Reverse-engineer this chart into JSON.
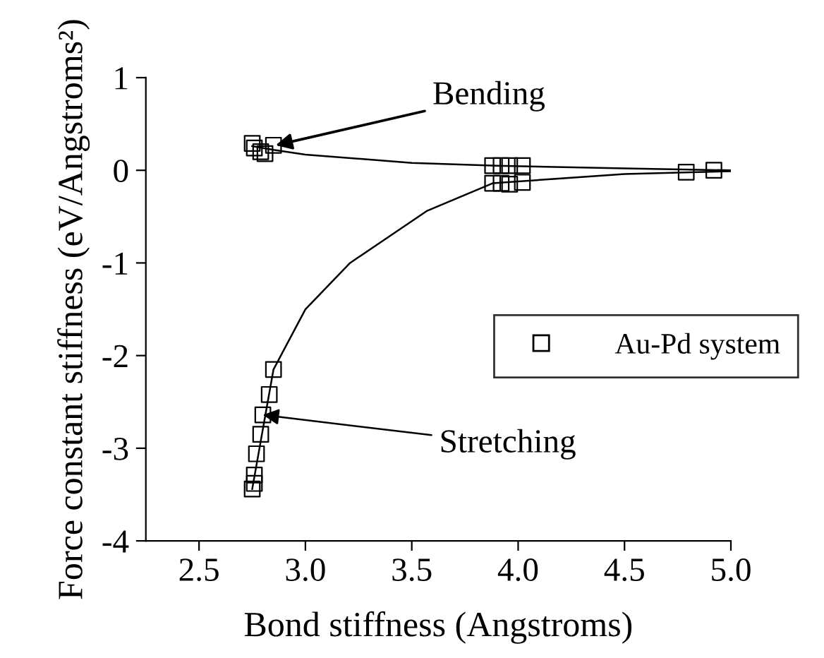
{
  "chart_data": {
    "type": "scatter",
    "xlabel": "Bond stiffness (Angstroms)",
    "ylabel": "Force constant stiffness (eV/Angstroms²)",
    "xlim": [
      2.25,
      5.0
    ],
    "ylim": [
      -4,
      1
    ],
    "xticks": [
      2.5,
      {
        "value": 3.0,
        "label": "3.0"
      },
      3.5,
      {
        "value": 4.0,
        "label": "4.0"
      },
      4.5,
      {
        "value": 5.0,
        "label": "5.0"
      }
    ],
    "yticks": [
      -4,
      -3,
      -2,
      -1,
      0,
      1
    ],
    "legend": "center right",
    "grid": false,
    "marker": "square",
    "series": [
      {
        "name": "Au-Pd system",
        "color": "#000000",
        "x": [
          2.75,
          2.76,
          2.79,
          2.81,
          2.85,
          3.88,
          3.92,
          3.96,
          4.02,
          3.88,
          3.92,
          3.96,
          4.02,
          4.79,
          4.92,
          2.85,
          2.83,
          2.8,
          2.79,
          2.77,
          2.76,
          2.76,
          2.75
        ],
        "values": [
          0.29,
          0.24,
          0.2,
          0.18,
          0.27,
          0.05,
          0.05,
          0.05,
          0.05,
          -0.14,
          -0.14,
          -0.15,
          -0.13,
          -0.02,
          0.0,
          -2.15,
          -2.42,
          -2.64,
          -2.85,
          -3.06,
          -3.29,
          -3.38,
          -3.44
        ]
      },
      {
        "type": "line",
        "marker": "none",
        "color": "#000000",
        "x": [
          2.75,
          2.85,
          3.0,
          3.5,
          3.9,
          4.5,
          5.0
        ],
        "values": [
          0.26,
          0.22,
          0.17,
          0.08,
          0.05,
          0.02,
          0.0
        ]
      },
      {
        "type": "line",
        "marker": "none",
        "color": "#000000",
        "x": [
          2.75,
          2.85,
          3.0,
          3.21,
          3.57,
          3.88,
          4.5,
          5.0
        ],
        "values": [
          -3.44,
          -2.15,
          -1.5,
          -1.0,
          -0.44,
          -0.14,
          -0.04,
          -0.01
        ]
      }
    ],
    "annotations": [
      {
        "text": "Bending",
        "x": 2.86,
        "y": 0.27
      },
      {
        "text": "Stretching",
        "x": 2.8,
        "y": -2.64
      }
    ]
  }
}
